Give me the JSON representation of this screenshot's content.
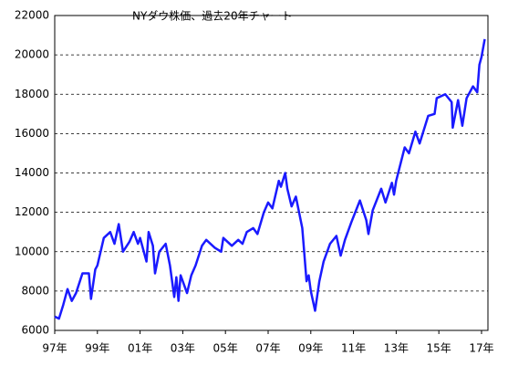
{
  "chart_data": {
    "type": "line",
    "title": "NYダウ株価、過去20年チャート",
    "x": [
      1997.0,
      1997.2,
      1997.4,
      1997.6,
      1997.8,
      1998.0,
      1998.3,
      1998.6,
      1998.7,
      1998.9,
      1999.0,
      1999.3,
      1999.6,
      1999.8,
      2000.0,
      2000.2,
      2000.5,
      2000.7,
      2000.9,
      2001.0,
      2001.3,
      2001.4,
      2001.6,
      2001.7,
      2001.9,
      2002.2,
      2002.4,
      2002.6,
      2002.7,
      2002.8,
      2002.9,
      2003.2,
      2003.4,
      2003.6,
      2003.9,
      2004.1,
      2004.5,
      2004.8,
      2004.9,
      2005.3,
      2005.6,
      2005.8,
      2006.0,
      2006.3,
      2006.5,
      2006.8,
      2007.0,
      2007.2,
      2007.5,
      2007.6,
      2007.8,
      2007.9,
      2008.1,
      2008.3,
      2008.6,
      2008.8,
      2008.9,
      2009.0,
      2009.2,
      2009.4,
      2009.6,
      2009.9,
      2010.2,
      2010.4,
      2010.6,
      2010.9,
      2011.3,
      2011.6,
      2011.7,
      2011.9,
      2012.3,
      2012.5,
      2012.8,
      2012.9,
      2013.0,
      2013.4,
      2013.6,
      2013.9,
      2014.1,
      2014.5,
      2014.8,
      2014.9,
      2015.3,
      2015.6,
      2015.65,
      2015.9,
      2016.1,
      2016.3,
      2016.6,
      2016.8,
      2016.9,
      2017.0,
      2017.15
    ],
    "series": [
      {
        "color": "#1a1aff",
        "values": [
          6700,
          6600,
          7300,
          8100,
          7500,
          7900,
          8900,
          8900,
          7600,
          9100,
          9300,
          10700,
          11000,
          10400,
          11400,
          10000,
          10500,
          11000,
          10400,
          10700,
          9500,
          11000,
          10300,
          8900,
          10000,
          10400,
          9300,
          7700,
          8700,
          7500,
          8800,
          7900,
          8800,
          9300,
          10300,
          10600,
          10200,
          10000,
          10700,
          10300,
          10600,
          10400,
          11000,
          11200,
          10900,
          12000,
          12500,
          12200,
          13600,
          13300,
          14000,
          13200,
          12300,
          12800,
          11200,
          8500,
          8800,
          8000,
          7000,
          8500,
          9500,
          10400,
          10800,
          9800,
          10600,
          11500,
          12600,
          11600,
          10900,
          12100,
          13200,
          12500,
          13500,
          12900,
          13600,
          15300,
          15000,
          16100,
          15500,
          16900,
          17000,
          17800,
          18000,
          17600,
          16300,
          17700,
          16400,
          17800,
          18400,
          18100,
          19500,
          19900,
          20800
        ]
      }
    ],
    "xlim": [
      1997.0,
      2017.3
    ],
    "xticks": [
      {
        "value": 1997,
        "label": "97年"
      },
      {
        "value": 1999,
        "label": "99年"
      },
      {
        "value": 2001,
        "label": "01年"
      },
      {
        "value": 2003,
        "label": "03年"
      },
      {
        "value": 2005,
        "label": "05年"
      },
      {
        "value": 2007,
        "label": "07年"
      },
      {
        "value": 2009,
        "label": "09年"
      },
      {
        "value": 2011,
        "label": "11年"
      },
      {
        "value": 2013,
        "label": "13年"
      },
      {
        "value": 2015,
        "label": "15年"
      },
      {
        "value": 2017,
        "label": "17年"
      }
    ],
    "ylim": [
      6000,
      22000
    ],
    "yticks": [
      6000,
      8000,
      10000,
      12000,
      14000,
      16000,
      18000,
      20000,
      22000
    ],
    "grid": true
  }
}
